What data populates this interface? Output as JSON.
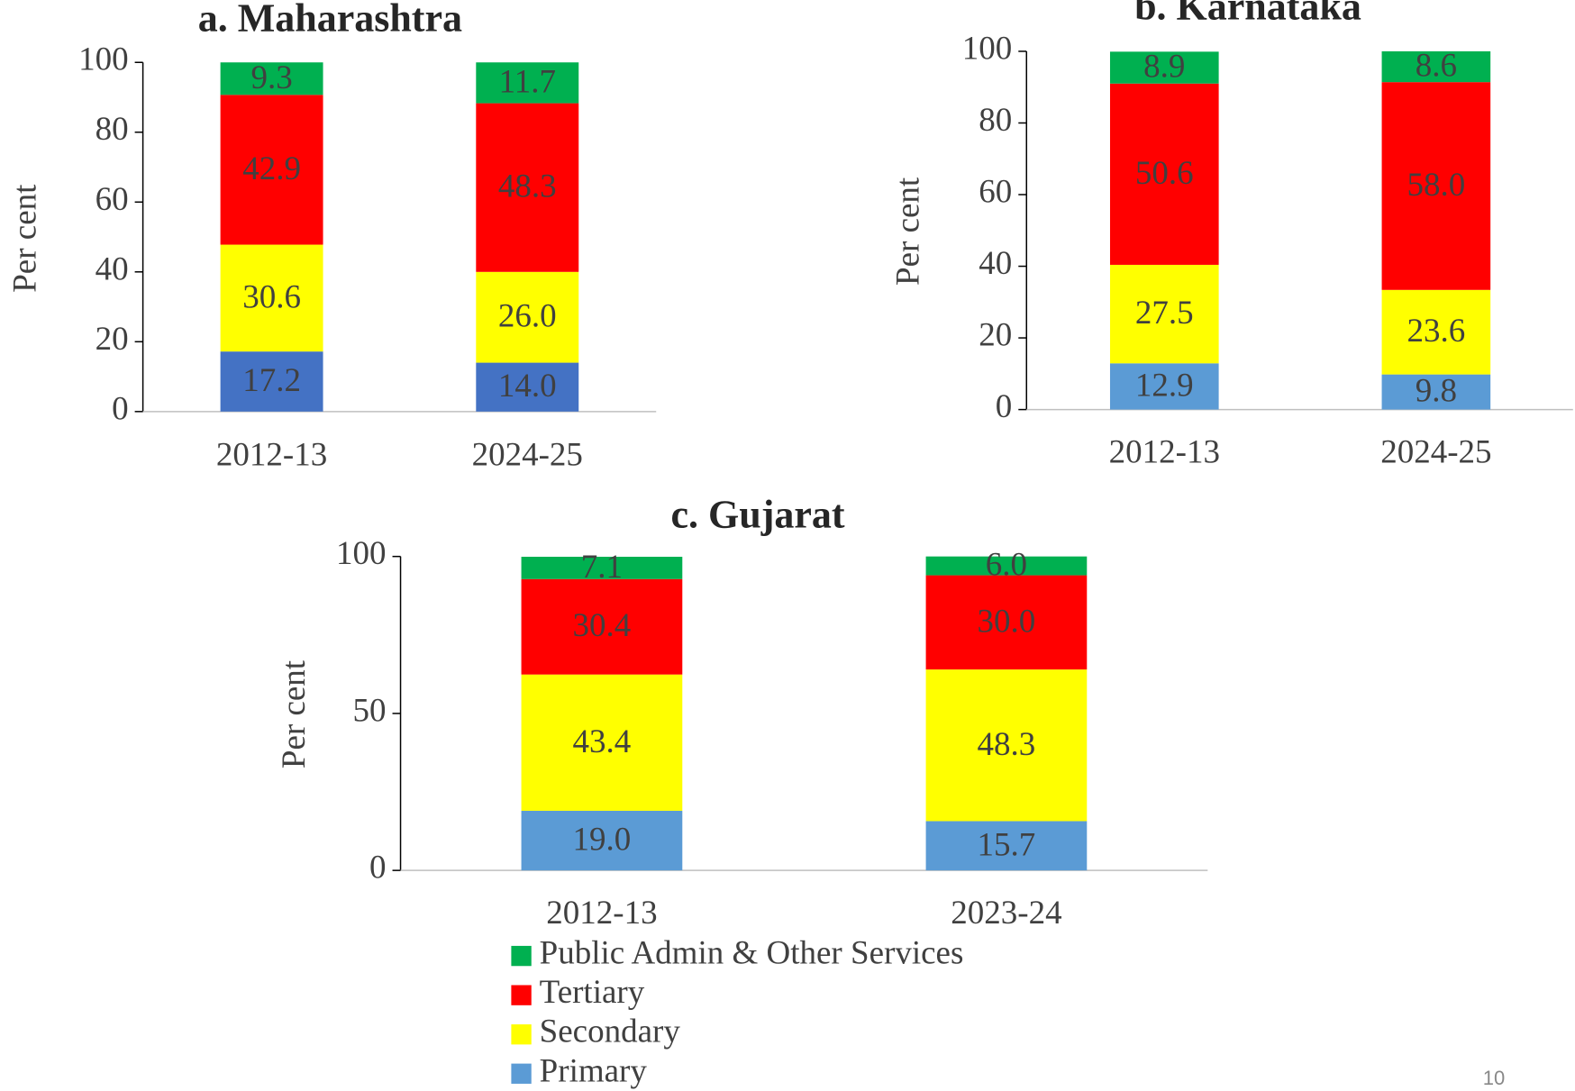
{
  "chart_data": [
    {
      "type": "bar",
      "stacked": true,
      "title": "a. Maharashtra",
      "y_label": "Per cent",
      "categories": [
        "2012-13",
        "2024-25"
      ],
      "ylim": [
        0,
        100
      ],
      "yticks": [
        0,
        20,
        40,
        60,
        80,
        100
      ],
      "series": [
        {
          "name": "Primary",
          "color": "#4472c4",
          "values": [
            17.2,
            14
          ],
          "value_labels": [
            "17.2",
            "14.0"
          ]
        },
        {
          "name": "Secondary",
          "color": "#ffff00",
          "values": [
            30.6,
            26
          ],
          "value_labels": [
            "30.6",
            "26.0"
          ]
        },
        {
          "name": "Tertiary",
          "color": "#ff0000",
          "values": [
            42.9,
            48.3
          ],
          "value_labels": [
            "42.9",
            "48.3"
          ]
        },
        {
          "name": "Public Admin & Other Services",
          "color": "#00b050",
          "values": [
            9.3,
            11.7
          ],
          "value_labels": [
            "9.3",
            "11.7"
          ]
        }
      ]
    },
    {
      "type": "bar",
      "stacked": true,
      "title": "b. Karnataka",
      "y_label": "Per cent",
      "categories": [
        "2012-13",
        "2024-25"
      ],
      "ylim": [
        0,
        100
      ],
      "yticks": [
        0,
        20,
        40,
        60,
        80,
        100
      ],
      "series": [
        {
          "name": "Primary",
          "color": "#5b9bd5",
          "values": [
            12.9,
            9.8
          ],
          "value_labels": [
            "12.9",
            "9.8"
          ]
        },
        {
          "name": "Secondary",
          "color": "#ffff00",
          "values": [
            27.5,
            23.6
          ],
          "value_labels": [
            "27.5",
            "23.6"
          ]
        },
        {
          "name": "Tertiary",
          "color": "#ff0000",
          "values": [
            50.6,
            58
          ],
          "value_labels": [
            "50.6",
            "58.0"
          ]
        },
        {
          "name": "Public Admin & Other Services",
          "color": "#00b050",
          "values": [
            8.9,
            8.6
          ],
          "value_labels": [
            "8.9",
            "8.6"
          ]
        }
      ]
    },
    {
      "type": "bar",
      "stacked": true,
      "title": "c. Gujarat",
      "y_label": "Per cent",
      "categories": [
        "2012-13",
        "2023-24"
      ],
      "ylim": [
        0,
        100
      ],
      "yticks": [
        0,
        50,
        100
      ],
      "legend": "bottom",
      "series": [
        {
          "name": "Primary",
          "color": "#5b9bd5",
          "values": [
            19,
            15.7
          ],
          "value_labels": [
            "19.0",
            "15.7"
          ]
        },
        {
          "name": "Secondary",
          "color": "#ffff00",
          "values": [
            43.4,
            48.3
          ],
          "value_labels": [
            "43.4",
            "48.3"
          ]
        },
        {
          "name": "Tertiary",
          "color": "#ff0000",
          "values": [
            30.4,
            30
          ],
          "value_labels": [
            "30.4",
            "30.0"
          ]
        },
        {
          "name": "Public Admin & Other Services",
          "color": "#00b050",
          "values": [
            7.1,
            6
          ],
          "value_labels": [
            "7.1",
            "6.0"
          ]
        }
      ]
    }
  ],
  "page_number": "10"
}
